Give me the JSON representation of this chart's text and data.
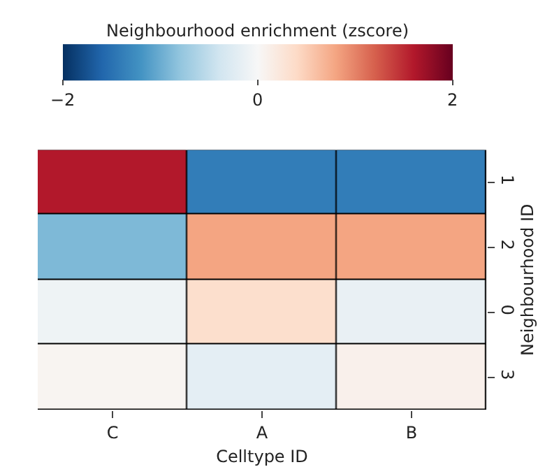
{
  "chart_data": {
    "type": "heatmap",
    "xlabel": "Celltype ID",
    "ylabel": "Neighbourhood ID",
    "clabel": "Neighbourhood enrichment (zscore)",
    "categories": [
      "C",
      "A",
      "B"
    ],
    "y_categories": [
      "1",
      "2",
      "0",
      "3"
    ],
    "cells": [
      [
        1.6,
        -1.4,
        -1.4
      ],
      [
        -0.9,
        0.8,
        0.8
      ],
      [
        -0.1,
        0.35,
        -0.15
      ],
      [
        0.05,
        -0.2,
        0.1
      ]
    ],
    "clim": [
      -2,
      2
    ],
    "cticks": [
      {
        "value": -2,
        "label": "−2"
      },
      0,
      2
    ]
  }
}
